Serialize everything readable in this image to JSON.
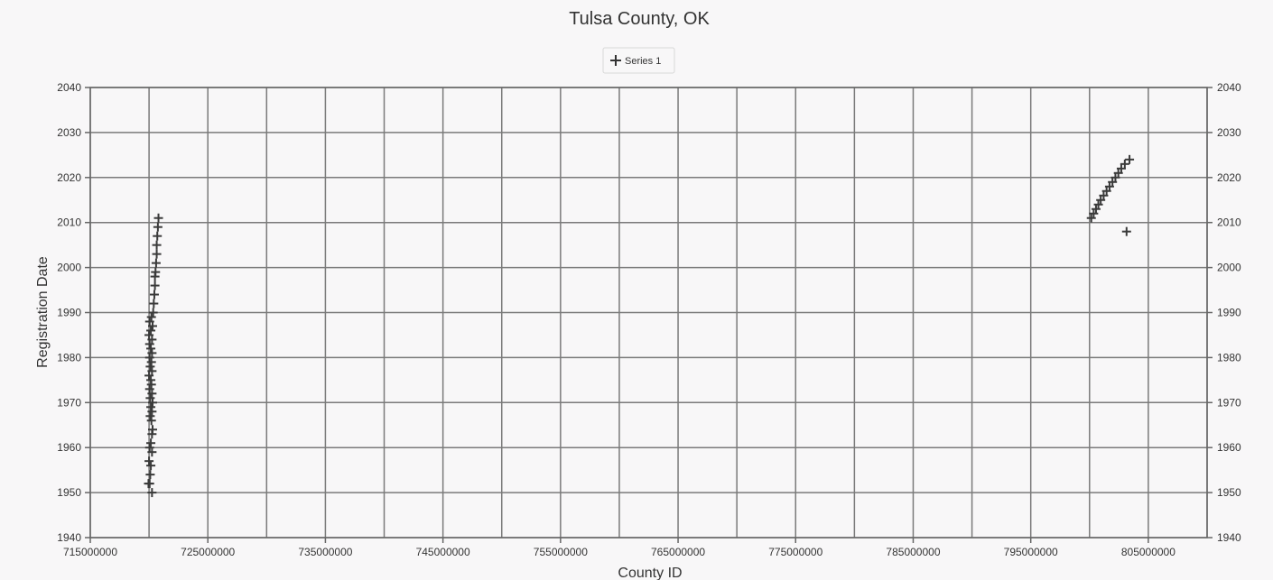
{
  "chart_data": {
    "type": "scatter",
    "title": "Tulsa County, OK",
    "xlabel": "County ID",
    "ylabel": "Registration Date",
    "xlim": [
      715000000,
      810000000
    ],
    "ylim": [
      1940,
      2040
    ],
    "xticks": [
      715000000,
      725000000,
      735000000,
      745000000,
      755000000,
      765000000,
      775000000,
      785000000,
      795000000,
      805000000
    ],
    "xtick_labels": [
      "715000000",
      "725000000",
      "735000000",
      "745000000",
      "755000000",
      "765000000",
      "775000000",
      "785000000",
      "795000000",
      "805000000"
    ],
    "yticks": [
      1940,
      1950,
      1960,
      1970,
      1980,
      1990,
      2000,
      2010,
      2020,
      2030,
      2040
    ],
    "ytick_labels": [
      "1940",
      "1950",
      "1960",
      "1970",
      "1980",
      "1990",
      "2000",
      "2010",
      "2020",
      "2030",
      "2040"
    ],
    "grid": true,
    "secondary_y_axis": true,
    "legend": "top-center",
    "marker": "cross",
    "marker_color": "#3a3a3a",
    "series": [
      {
        "name": "Series 1",
        "points": [
          [
            720250000,
            1950
          ],
          [
            720050000,
            1952
          ],
          [
            719950000,
            1952
          ],
          [
            720100000,
            1954
          ],
          [
            720150000,
            1956
          ],
          [
            720000000,
            1957
          ],
          [
            720250000,
            1959
          ],
          [
            720050000,
            1960
          ],
          [
            720150000,
            1961
          ],
          [
            720250000,
            1963
          ],
          [
            720300000,
            1964
          ],
          [
            720200000,
            1966
          ],
          [
            720100000,
            1967
          ],
          [
            720250000,
            1968
          ],
          [
            720150000,
            1969
          ],
          [
            720300000,
            1970
          ],
          [
            720100000,
            1971
          ],
          [
            720250000,
            1972
          ],
          [
            720050000,
            1973
          ],
          [
            720200000,
            1974
          ],
          [
            720150000,
            1975
          ],
          [
            720000000,
            1976
          ],
          [
            720250000,
            1977
          ],
          [
            720100000,
            1978
          ],
          [
            720200000,
            1979
          ],
          [
            720050000,
            1980
          ],
          [
            720250000,
            1981
          ],
          [
            720150000,
            1982
          ],
          [
            720050000,
            1983
          ],
          [
            720250000,
            1984
          ],
          [
            720000000,
            1985
          ],
          [
            720150000,
            1986
          ],
          [
            720300000,
            1987
          ],
          [
            720050000,
            1988
          ],
          [
            720200000,
            1989
          ],
          [
            720350000,
            1990
          ],
          [
            720400000,
            1992
          ],
          [
            720450000,
            1994
          ],
          [
            720500000,
            1996
          ],
          [
            720500000,
            1998
          ],
          [
            720550000,
            1999
          ],
          [
            720600000,
            2001
          ],
          [
            720650000,
            2003
          ],
          [
            720650000,
            2005
          ],
          [
            720700000,
            2007
          ],
          [
            720750000,
            2009
          ],
          [
            720800000,
            2011
          ],
          [
            800150000,
            2011
          ],
          [
            800350000,
            2012
          ],
          [
            800550000,
            2013
          ],
          [
            800750000,
            2014
          ],
          [
            800950000,
            2015
          ],
          [
            801200000,
            2016
          ],
          [
            801450000,
            2017
          ],
          [
            801700000,
            2018
          ],
          [
            801950000,
            2019
          ],
          [
            802200000,
            2020
          ],
          [
            802450000,
            2021
          ],
          [
            802700000,
            2022
          ],
          [
            803000000,
            2023
          ],
          [
            803400000,
            2024
          ],
          [
            803150000,
            2008
          ]
        ]
      }
    ]
  }
}
